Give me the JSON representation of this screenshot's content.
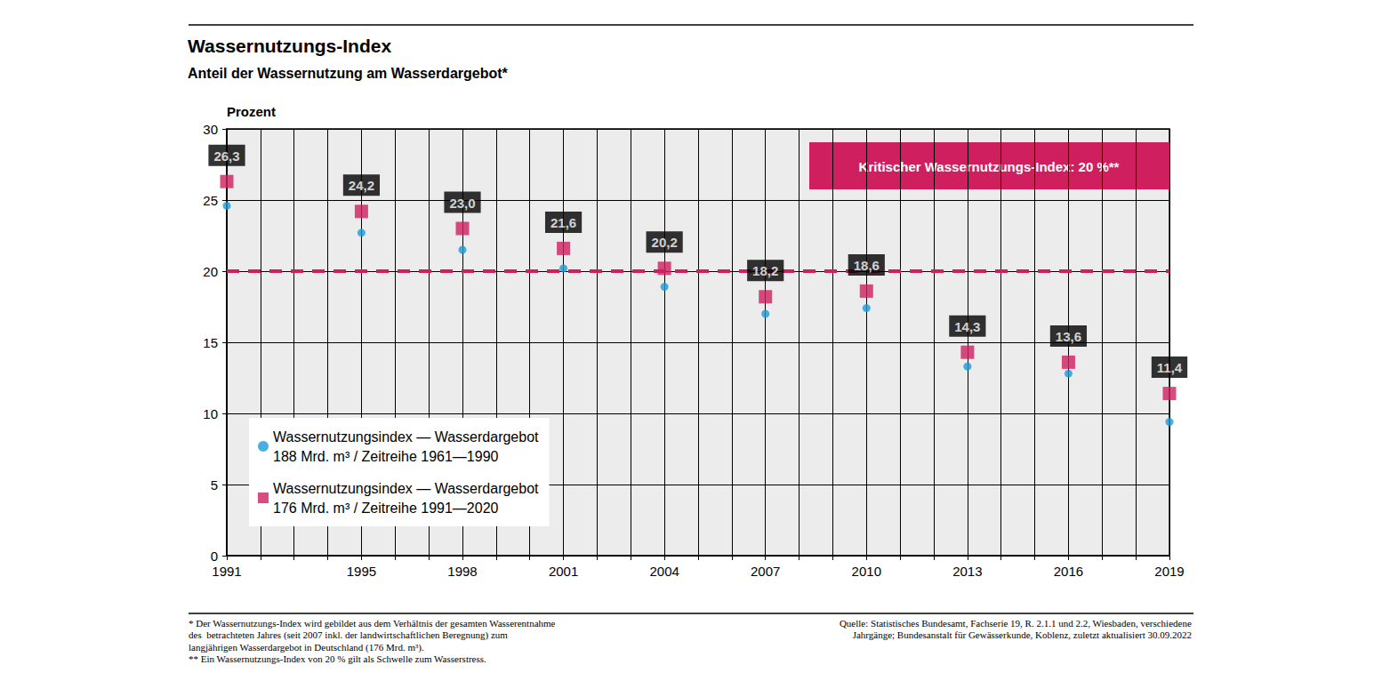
{
  "chart_data": {
    "type": "scatter",
    "title": "Wassernutzungs-Index",
    "subtitle": "Anteil der Wassernutzung am Wasserdargebot*",
    "y_label": "Prozent",
    "categories": [
      1991,
      null,
      null,
      null,
      1995,
      null,
      null,
      1998,
      null,
      null,
      2001,
      null,
      null,
      2004,
      null,
      null,
      2007,
      null,
      null,
      2010,
      null,
      null,
      2013,
      null,
      null,
      2016,
      null,
      null,
      2019
    ],
    "series": [
      {
        "name": "Wassernutzungsindex — Wasserdargebot\n188 Mrd. m³ / Zeitreihe 1961—1990",
        "color": "#1a9bd7",
        "marker": "circle",
        "data_labels": false,
        "values": [
          24.6,
          null,
          null,
          null,
          22.7,
          null,
          null,
          21.5,
          null,
          null,
          20.2,
          null,
          null,
          18.9,
          null,
          null,
          17.0,
          null,
          null,
          17.4,
          null,
          null,
          13.3,
          null,
          null,
          12.8,
          null,
          null,
          9.4
        ]
      },
      {
        "name": "Wassernutzungsindex — Wasserdargebot\n176 Mrd. m³ / Zeitreihe 1991—2020",
        "color": "#d01f5f",
        "marker": "square",
        "data_labels": true,
        "values": [
          26.3,
          null,
          null,
          null,
          24.2,
          null,
          null,
          23.0,
          null,
          null,
          21.6,
          null,
          null,
          20.2,
          null,
          null,
          18.2,
          null,
          null,
          18.6,
          null,
          null,
          14.3,
          null,
          null,
          13.6,
          null,
          null,
          11.4
        ],
        "value_labels": [
          "26,3",
          null,
          null,
          null,
          "24,2",
          null,
          null,
          "23,0",
          null,
          null,
          "21,6",
          null,
          null,
          "20,2",
          null,
          null,
          "18,2",
          null,
          null,
          "18,6",
          null,
          null,
          "14,3",
          null,
          null,
          "13,6",
          null,
          null,
          "11,4"
        ]
      }
    ],
    "reference_line": {
      "value": 20,
      "label": "Kritischer Wassernutzungs-Index: 20 %**",
      "color": "#d01f5f",
      "line_style": "dashed"
    },
    "ylim": [
      0,
      30
    ],
    "yticks": [
      0,
      5,
      10,
      15,
      20,
      25,
      30
    ],
    "grid": true,
    "legend": "bottom left",
    "notes": [
      "* Der Wassernutzungs-Index wird gebildet aus dem Verhältnis der gesamten Wasserentnahme",
      "des  betrachteten Jahres (seit 2007 inkl. der landwirtschaftlichen Beregnung) zum",
      "langjährigen Wasserdargebot in Deutschland (176 Mrd. m³).",
      "** Ein Wassernutzungs-Index von 20 % gilt als Schwelle zum Wasserstress."
    ],
    "source": [
      "Quelle: Statistisches Bundesamt, Fachserie 19, R. 2.1.1 und 2.2, Wiesbaden, verschiedene",
      "Jahrgänge; Bundesanstalt für Gewässerkunde, Koblenz, zuletzt aktualisiert 30.09.2022"
    ]
  }
}
